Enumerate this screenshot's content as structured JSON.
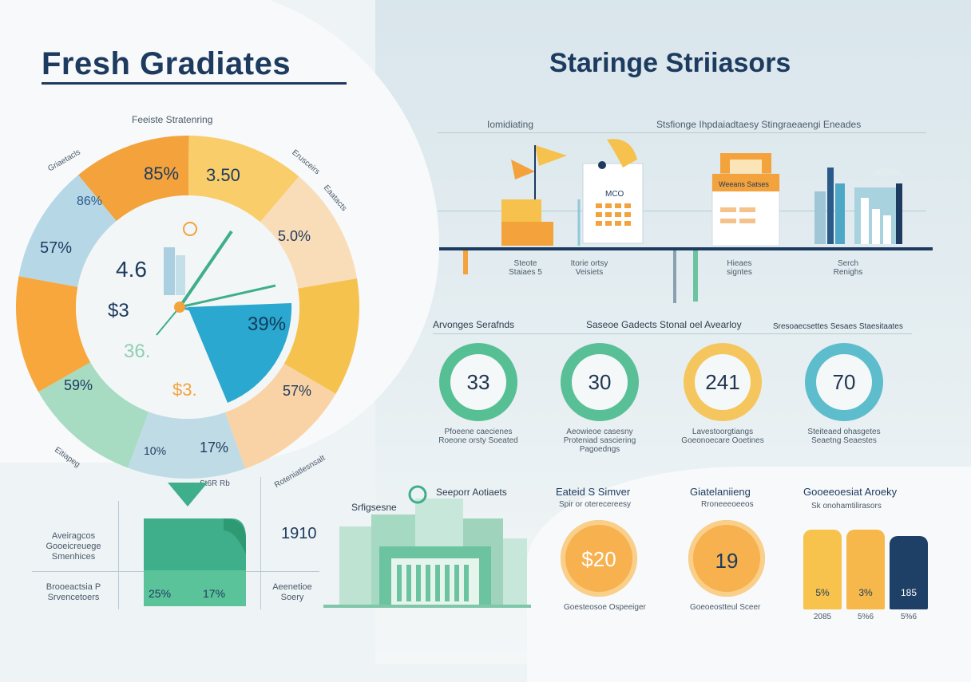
{
  "header": {
    "title": "Fresh Gradiates",
    "right_title": "Staringe Striiasors"
  },
  "pie": {
    "top_label": "Feeiste Stratenring",
    "outer_labels": {
      "upper_left": "Griaetacls",
      "upper_right": "Erusceirs",
      "right": "Eaatacts",
      "lower_left": "Eitiapeg",
      "bottom_center": "St6R Rb",
      "bottom_right": "Roteniatlesnsalt"
    },
    "segments": [
      {
        "label": "85%",
        "color": "#f3a23c"
      },
      {
        "label": "3.50",
        "color": "#f8cd6a"
      },
      {
        "label": "5.0%",
        "color": "#f9ddb8"
      },
      {
        "label": "57%",
        "color": "#f6c24e"
      },
      {
        "label": "17%",
        "color": "#f9d3a5"
      },
      {
        "label": "10%",
        "color": "#bfdbe5"
      },
      {
        "label": "59%",
        "color": "#a7dcc3"
      },
      {
        "label": "57%",
        "color": "#f7a73b"
      },
      {
        "label": "86%",
        "color": "#b6d7e6"
      }
    ],
    "inner": {
      "value1": "4.6",
      "value2": "$3",
      "value3": "36.",
      "value4": "$3.",
      "highlight": "39%"
    }
  },
  "bottom_left": {
    "row1_label": "Aveiragcos Gooeicreuege Smenhices",
    "row2_label": "Brooeactsia P Srvencetoers",
    "value_left": "25%",
    "value_right": "17%",
    "count": "1910",
    "count_sub": "Aeenetioe Soery"
  },
  "right_top": {
    "left_header": "Iomidiating",
    "right_header": "Stsfionge Ihpdaiadtaesy Stingraeaengi Eneades",
    "card_label": "MCO",
    "case_label": "Weeans Satses",
    "captions": [
      "Steote Staiaes 5",
      "Itorie ortsy Veisiets",
      "Hieaes signtes",
      "Serch Renighs"
    ]
  },
  "metrics": {
    "row_label_left": "Arvonges Serafnds",
    "row_label_mid": "Saseoe Gadects Stonal oel Avearloy",
    "row_label_right": "Sresoaecsettes Sesaes Staesitaates",
    "items": [
      {
        "value": "33",
        "caption": "Pfoeene caecienes Roeone orsty Soeated",
        "color": "#46b98a"
      },
      {
        "value": "30",
        "caption": "Aeowieoe casesny Proteniad sasciering Pagoedngs",
        "color": "#49b98c"
      },
      {
        "value": "241",
        "caption": "Lavestoorgtiangs Goeonoecare Ooetines",
        "color": "#f6c14c"
      },
      {
        "value": "70",
        "caption": "Steiteaed ohasgetes Seaetng Seaestes",
        "color": "#4fb7c8"
      }
    ]
  },
  "bottom_right": {
    "building_label": "Srfigsesne",
    "support_label": "Seeporr Aotiaets",
    "col1_title": "Eateid S Simver",
    "col1_sub": "Spir or oterecereesy",
    "col1_value": "$20",
    "col1_caption": "Goesteosoe Ospeeiger",
    "col2_title": "Giatelaniieng",
    "col2_sub": "Rroneeeoeeos",
    "col2_value": "19",
    "col2_caption": "Goeoeostteul Sceer",
    "col3_title": "Gooeeoesiat Aroeky",
    "col3_sub": "Sk onohamtilirasors",
    "bars": [
      {
        "label": "5%",
        "foot": "2085",
        "color": "#f7c34c"
      },
      {
        "label": "3%",
        "foot": "5%6",
        "color": "#f6b84a"
      },
      {
        "label": "185",
        "foot": "5%6",
        "color": "#1e3f66"
      }
    ]
  }
}
